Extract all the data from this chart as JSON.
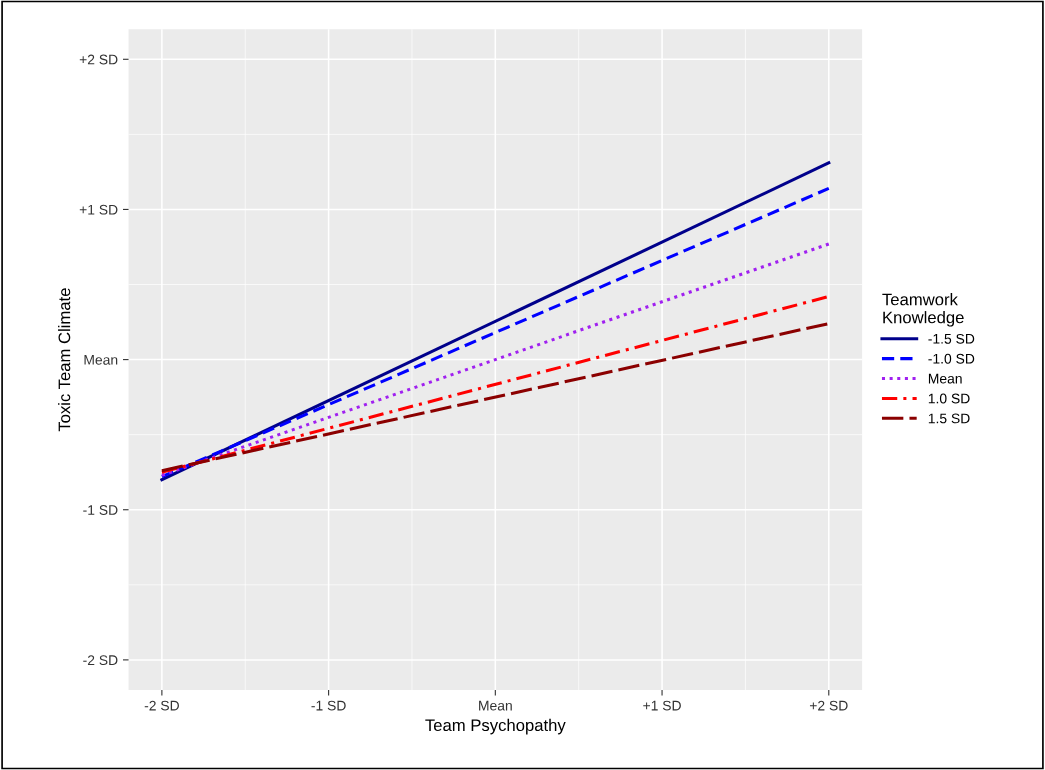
{
  "chart_data": {
    "type": "line",
    "xlabel": "Team Psychopathy",
    "ylabel": "Toxic Team Climate",
    "legend_title": "Teamwork\nKnowledge",
    "x": [
      -2,
      2
    ],
    "series": [
      {
        "name": "-1.5 SD",
        "color": "#00008b",
        "values": [
          -0.8,
          1.31
        ],
        "line_style": "solid"
      },
      {
        "name": "-1.0 SD",
        "color": "#0000ff",
        "values": [
          -0.78,
          1.14
        ],
        "line_style": "dashed"
      },
      {
        "name": "Mean",
        "color": "#a020f0",
        "values": [
          -0.77,
          0.77
        ],
        "line_style": "dotted"
      },
      {
        "name": "1.0 SD",
        "color": "#ff0000",
        "values": [
          -0.75,
          0.42
        ],
        "line_style": "dashdot"
      },
      {
        "name": "1.5 SD",
        "color": "#8b0000",
        "values": [
          -0.74,
          0.24
        ],
        "line_style": "longdash"
      }
    ],
    "xlim": [
      -2.2,
      2.2
    ],
    "ylim": [
      -2.2,
      2.2
    ],
    "xticks": [
      {
        "value": -2,
        "label": "-2 SD"
      },
      {
        "value": -1,
        "label": "-1 SD"
      },
      {
        "value": 0,
        "label": "Mean"
      },
      {
        "value": 1,
        "label": "+1 SD"
      },
      {
        "value": 2,
        "label": "+2 SD"
      }
    ],
    "yticks": [
      {
        "value": -2,
        "label": "-2 SD"
      },
      {
        "value": -1,
        "label": "-1 SD"
      },
      {
        "value": 0,
        "label": "Mean"
      },
      {
        "value": 1,
        "label": "+1 SD"
      },
      {
        "value": 2,
        "label": "+2 SD"
      }
    ],
    "grid": true,
    "legend": "right",
    "marker": "none"
  }
}
